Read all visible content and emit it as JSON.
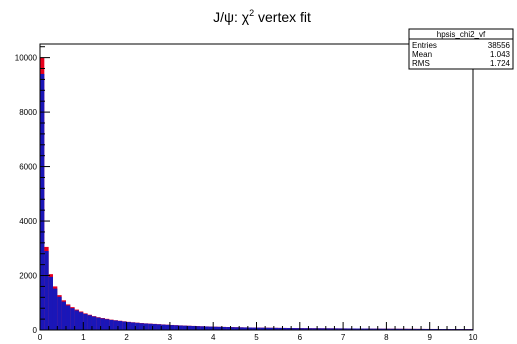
{
  "chart_data": {
    "type": "bar",
    "title_main": "J/ψ: χ",
    "title_sup": "2",
    "title_rest": " vertex fit",
    "x_range": [
      0,
      10
    ],
    "y_range": [
      0,
      10500
    ],
    "x_ticks": [
      "0",
      "1",
      "2",
      "3",
      "4",
      "5",
      "6",
      "7",
      "8",
      "9",
      "10"
    ],
    "y_ticks": [
      "0",
      "2000",
      "4000",
      "6000",
      "8000",
      "10000"
    ],
    "y_tick_values": [
      0,
      2000,
      4000,
      6000,
      8000,
      10000
    ],
    "bin_width": 0.1,
    "series": [
      {
        "color": "#e8001c",
        "values": [
          10000,
          3050,
          2050,
          1600,
          1280,
          1090,
          940,
          840,
          750,
          680,
          610,
          560,
          510,
          470,
          440,
          410,
          380,
          360,
          340,
          320,
          300,
          285,
          270,
          255,
          245,
          235,
          225,
          215,
          205,
          195,
          185,
          178,
          170,
          163,
          156,
          150,
          144,
          138,
          132,
          127,
          122,
          118,
          114,
          110,
          106,
          102,
          99,
          96,
          93,
          90,
          88,
          86,
          84,
          82,
          80,
          78,
          76,
          74,
          72,
          70,
          68,
          67,
          66,
          65,
          64,
          63,
          62,
          61,
          60,
          59,
          58,
          57,
          56,
          55,
          54,
          53,
          52,
          51,
          50,
          49,
          48,
          47,
          46,
          45,
          44,
          43,
          42,
          41,
          40,
          39,
          38,
          38,
          37,
          37,
          36,
          36,
          35,
          35,
          34,
          34
        ]
      },
      {
        "color": "#1a16b8",
        "values": [
          9400,
          2900,
          1950,
          1520,
          1220,
          1040,
          900,
          800,
          720,
          650,
          590,
          540,
          495,
          455,
          425,
          395,
          370,
          350,
          330,
          310,
          292,
          277,
          262,
          248,
          238,
          228,
          218,
          208,
          198,
          189,
          180,
          173,
          165,
          158,
          152,
          146,
          140,
          134,
          129,
          124,
          119,
          115,
          111,
          107,
          103,
          100,
          97,
          94,
          91,
          88,
          86,
          84,
          82,
          80,
          78,
          76,
          74,
          72,
          70,
          68,
          67,
          66,
          65,
          64,
          63,
          62,
          61,
          60,
          59,
          58,
          57,
          56,
          55,
          54,
          53,
          52,
          51,
          50,
          49,
          48,
          47,
          46,
          45,
          44,
          43,
          42,
          41,
          40,
          39,
          38,
          37,
          37,
          36,
          36,
          35,
          35,
          34,
          34,
          33,
          33
        ]
      }
    ]
  },
  "stats_box": {
    "name": "hpsis_chi2_vf",
    "rows": [
      {
        "label": "Entries",
        "value": "38556"
      },
      {
        "label": "Mean",
        "value": "1.043"
      },
      {
        "label": "RMS",
        "value": "1.724"
      }
    ]
  }
}
